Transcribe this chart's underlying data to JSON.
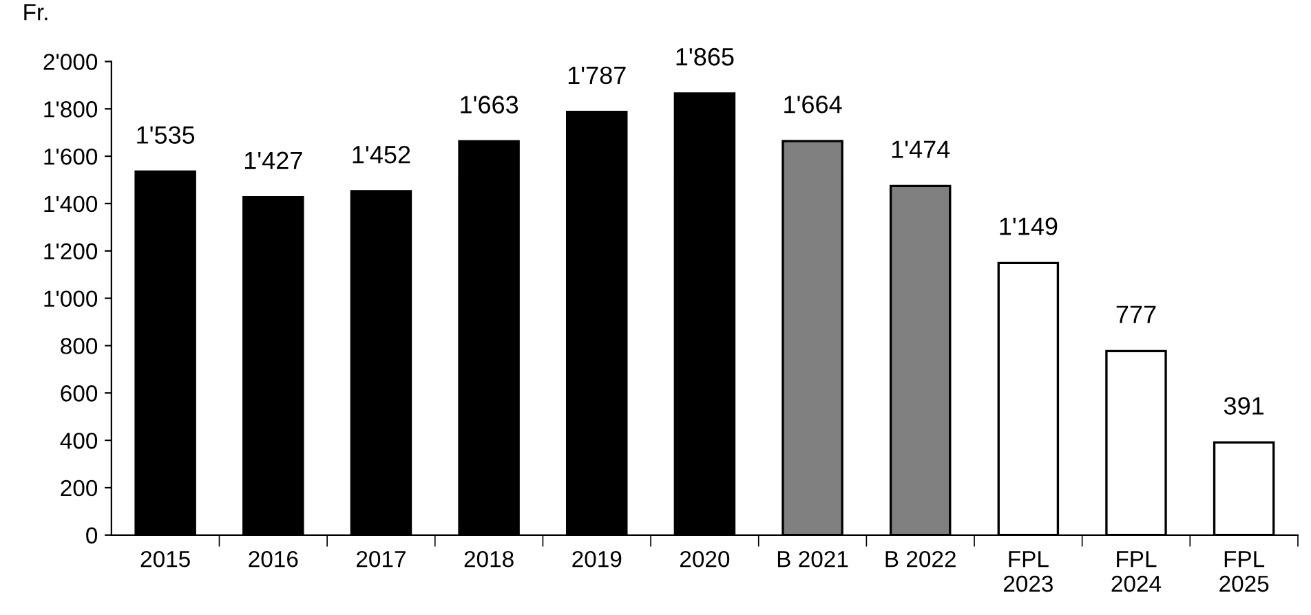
{
  "chart_data": {
    "type": "bar",
    "ylabel": "Fr.",
    "categories": [
      "2015",
      "2016",
      "2017",
      "2018",
      "2019",
      "2020",
      "B 2021",
      "B 2022",
      "FPL\n2023",
      "FPL\n2024",
      "FPL\n2025"
    ],
    "values": [
      1535,
      1427,
      1452,
      1663,
      1787,
      1865,
      1664,
      1474,
      1149,
      777,
      391
    ],
    "colors": [
      "#000000",
      "#000000",
      "#000000",
      "#000000",
      "#000000",
      "#000000",
      "#808080",
      "#808080",
      "#ffffff",
      "#ffffff",
      "#ffffff"
    ],
    "value_labels": [
      "1'535",
      "1'427",
      "1'452",
      "1'663",
      "1'787",
      "1'865",
      "1'664",
      "1'474",
      "1'149",
      "777",
      "391"
    ],
    "ylim": [
      0,
      2000
    ],
    "yticks": [
      0,
      200,
      400,
      600,
      800,
      {
        "value": 1000,
        "label": "1'000"
      },
      {
        "value": 1200,
        "label": "1'200"
      },
      {
        "value": 1400,
        "label": "1'400"
      },
      {
        "value": 1600,
        "label": "1'600"
      },
      {
        "value": 1800,
        "label": "1'800"
      },
      {
        "value": 2000,
        "label": "2'000"
      }
    ],
    "grid": false,
    "legend": false
  }
}
